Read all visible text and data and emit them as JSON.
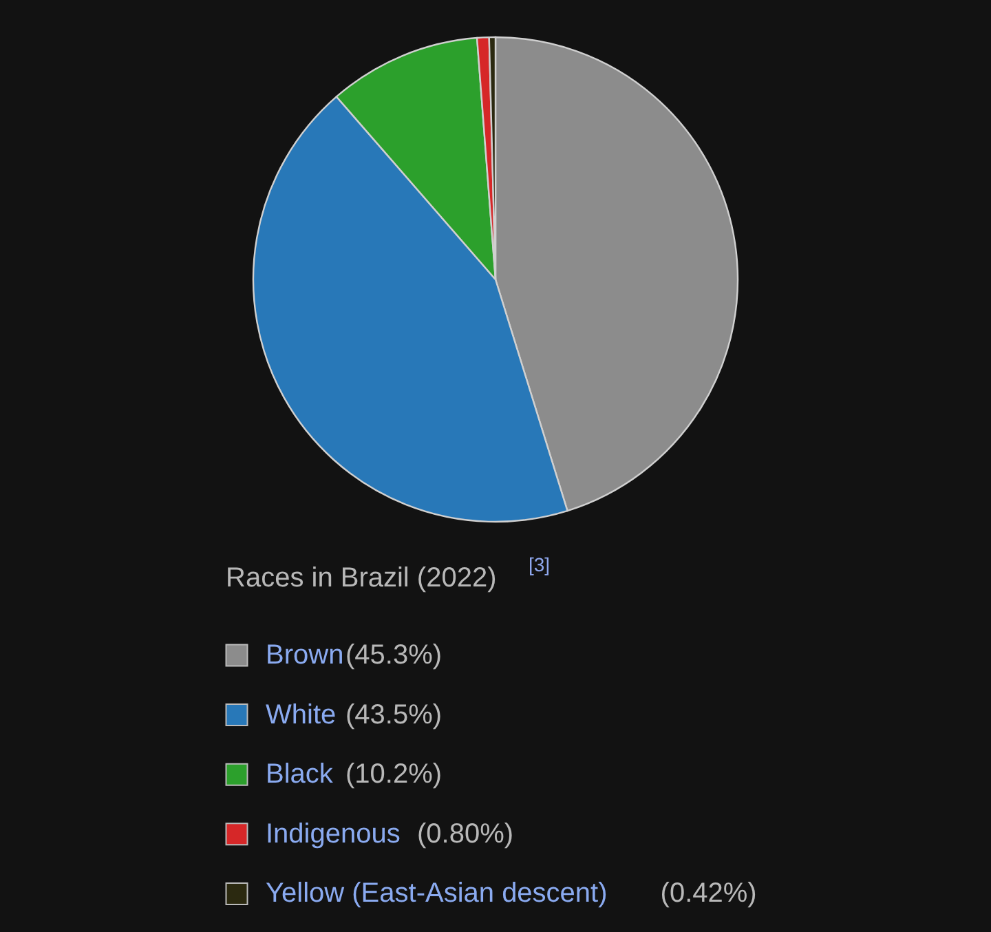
{
  "chart_data": {
    "type": "pie",
    "title": "Races in Brazil (2022)$^{[3]}$",
    "categories": [
      "Brown",
      "White",
      "Black",
      "Indigenous",
      "Yellow (East-Asian descent)"
    ],
    "values": [
      45.3,
      43.5,
      10.2,
      0.8,
      0.42
    ],
    "value_labels": [
      "(45.3%)",
      "(43.5%)",
      "(10.2%)",
      "(0.80%)",
      "(0.42%)"
    ],
    "colors": [
      "#8c8c8c",
      "#2878b8",
      "#2ca02c",
      "#d62728",
      "#2b2910"
    ],
    "legend": "bottom"
  }
}
